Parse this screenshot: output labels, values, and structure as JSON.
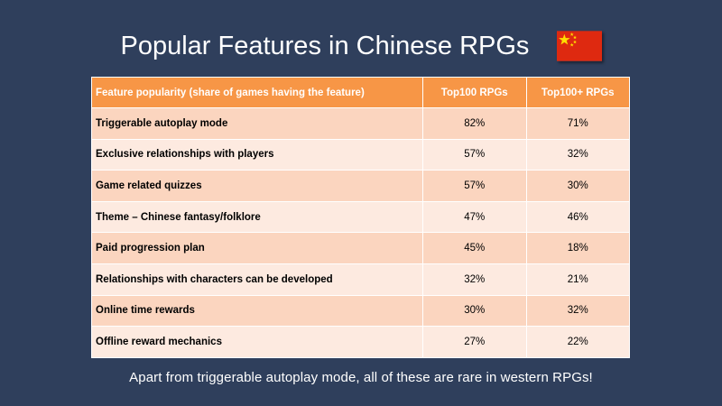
{
  "title": "Popular Features in Chinese RPGs",
  "flag_icon": "china-flag-icon",
  "colors": {
    "background": "#2f3f5c",
    "header": "#f79646",
    "row_odd": "#fbd5bf",
    "row_even": "#fdeae0",
    "flag_red": "#de2910",
    "flag_star": "#ffde00"
  },
  "table": {
    "headers": [
      "Feature popularity (share of games having the feature)",
      "Top100 RPGs",
      "Top100+ RPGs"
    ],
    "rows": [
      [
        "Triggerable autoplay mode",
        "82%",
        "71%"
      ],
      [
        "Exclusive relationships with players",
        "57%",
        "32%"
      ],
      [
        "Game related quizzes",
        "57%",
        "30%"
      ],
      [
        "Theme – Chinese fantasy/folklore",
        "47%",
        "46%"
      ],
      [
        "Paid progression plan",
        "45%",
        "18%"
      ],
      [
        "Relationships with characters can be developed",
        "32%",
        "21%"
      ],
      [
        "Online time rewards",
        "30%",
        "32%"
      ],
      [
        "Offline reward mechanics",
        "27%",
        "22%"
      ]
    ]
  },
  "footnote": "Apart from triggerable autoplay mode, all of these are rare in western RPGs!"
}
